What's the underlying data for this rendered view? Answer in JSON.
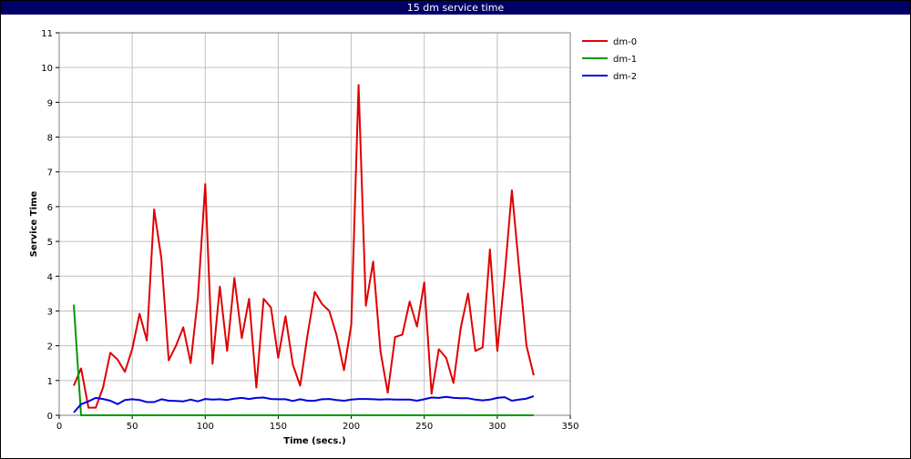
{
  "window": {
    "title": "15 dm service time"
  },
  "chart_data": {
    "type": "line",
    "title": "15 dm service time",
    "xlabel": "Time (secs.)",
    "ylabel": "Service Time",
    "xlim": [
      0,
      350
    ],
    "ylim": [
      0,
      11
    ],
    "xticks": [
      0,
      50,
      100,
      150,
      200,
      250,
      300,
      350
    ],
    "yticks": [
      0,
      1,
      2,
      3,
      4,
      5,
      6,
      7,
      8,
      9,
      10,
      11
    ],
    "grid": true,
    "legend_position": "right",
    "series": [
      {
        "name": "dm-0",
        "color": "#e00000",
        "x": [
          10,
          15,
          20,
          25,
          30,
          35,
          40,
          45,
          50,
          55,
          60,
          65,
          70,
          75,
          80,
          85,
          90,
          95,
          100,
          105,
          110,
          115,
          120,
          125,
          130,
          135,
          140,
          145,
          150,
          155,
          160,
          165,
          170,
          175,
          180,
          185,
          190,
          195,
          200,
          205,
          210,
          215,
          220,
          225,
          230,
          235,
          240,
          245,
          250,
          255,
          260,
          265,
          270,
          275,
          280,
          285,
          290,
          295,
          300,
          305,
          310,
          315,
          320,
          325
        ],
        "y": [
          0.85,
          1.35,
          0.22,
          0.22,
          0.8,
          1.8,
          1.6,
          1.25,
          1.9,
          2.92,
          2.15,
          5.92,
          4.5,
          1.58,
          2.0,
          2.53,
          1.5,
          3.4,
          6.65,
          1.48,
          3.7,
          1.85,
          3.95,
          2.22,
          3.35,
          0.8,
          3.35,
          3.1,
          1.65,
          2.85,
          1.45,
          0.85,
          2.3,
          3.55,
          3.2,
          3.0,
          2.3,
          1.3,
          2.6,
          9.5,
          3.15,
          4.42,
          1.85,
          0.65,
          2.25,
          2.32,
          3.27,
          2.55,
          3.82,
          0.62,
          1.9,
          1.65,
          0.93,
          2.52,
          3.5,
          1.85,
          1.95,
          4.77,
          1.85,
          4.0,
          6.47,
          4.2,
          2.0,
          1.15
        ]
      },
      {
        "name": "dm-1",
        "color": "#009900",
        "x": [
          10,
          15,
          20,
          25,
          30,
          35,
          40,
          45,
          50,
          55,
          60,
          65,
          70,
          75,
          80,
          85,
          90,
          95,
          100,
          105,
          110,
          115,
          120,
          125,
          130,
          135,
          140,
          145,
          150,
          155,
          160,
          165,
          170,
          175,
          180,
          185,
          190,
          195,
          200,
          205,
          210,
          215,
          220,
          225,
          230,
          235,
          240,
          245,
          250,
          255,
          260,
          265,
          270,
          275,
          280,
          285,
          290,
          295,
          300,
          305,
          310,
          315,
          320,
          325
        ],
        "y": [
          3.18,
          0,
          0,
          0,
          0,
          0,
          0,
          0,
          0,
          0,
          0,
          0,
          0,
          0,
          0,
          0,
          0,
          0,
          0,
          0,
          0,
          0,
          0,
          0,
          0,
          0,
          0,
          0,
          0,
          0,
          0,
          0,
          0,
          0,
          0,
          0,
          0,
          0,
          0,
          0,
          0,
          0,
          0,
          0,
          0,
          0,
          0,
          0,
          0,
          0,
          0,
          0,
          0,
          0,
          0,
          0,
          0,
          0,
          0,
          0,
          0,
          0,
          0,
          0
        ]
      },
      {
        "name": "dm-2",
        "color": "#0000dd",
        "x": [
          10,
          15,
          20,
          25,
          30,
          35,
          40,
          45,
          50,
          55,
          60,
          65,
          70,
          75,
          80,
          85,
          90,
          95,
          100,
          105,
          110,
          115,
          120,
          125,
          130,
          135,
          140,
          145,
          150,
          155,
          160,
          165,
          170,
          175,
          180,
          185,
          190,
          195,
          200,
          205,
          210,
          215,
          220,
          225,
          230,
          235,
          240,
          245,
          250,
          255,
          260,
          265,
          270,
          275,
          280,
          285,
          290,
          295,
          300,
          305,
          310,
          315,
          320,
          325
        ],
        "y": [
          0.08,
          0.32,
          0.4,
          0.5,
          0.47,
          0.42,
          0.32,
          0.44,
          0.46,
          0.44,
          0.38,
          0.38,
          0.46,
          0.42,
          0.41,
          0.4,
          0.45,
          0.4,
          0.47,
          0.45,
          0.46,
          0.44,
          0.48,
          0.5,
          0.47,
          0.5,
          0.51,
          0.47,
          0.46,
          0.46,
          0.41,
          0.46,
          0.42,
          0.42,
          0.46,
          0.47,
          0.44,
          0.42,
          0.45,
          0.47,
          0.47,
          0.46,
          0.45,
          0.46,
          0.45,
          0.45,
          0.45,
          0.42,
          0.46,
          0.51,
          0.5,
          0.53,
          0.5,
          0.49,
          0.49,
          0.45,
          0.43,
          0.45,
          0.5,
          0.52,
          0.42,
          0.45,
          0.48,
          0.55
        ]
      }
    ]
  }
}
